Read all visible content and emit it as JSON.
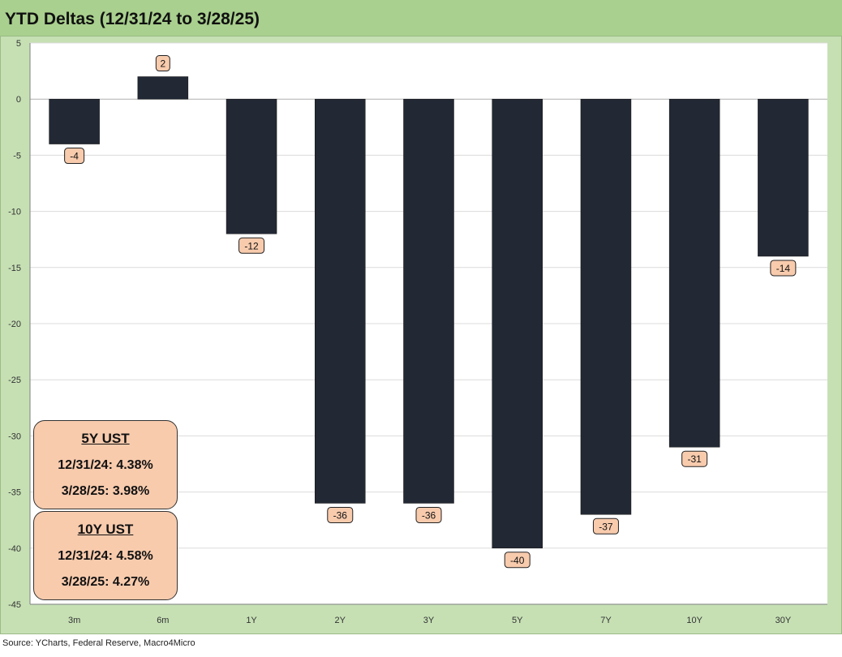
{
  "header": {
    "title": "YTD Deltas (12/31/24 to 3/28/25)"
  },
  "chart_data": {
    "type": "bar",
    "title": "YTD Deltas (12/31/24 to 3/28/25)",
    "categories": [
      "3m",
      "6m",
      "1Y",
      "2Y",
      "3Y",
      "5Y",
      "7Y",
      "10Y",
      "30Y"
    ],
    "values": [
      -4,
      2,
      -12,
      -36,
      -36,
      -40,
      -37,
      -31,
      -14
    ],
    "ylim": [
      -45,
      5
    ],
    "yticks": [
      5,
      0,
      -5,
      -10,
      -15,
      -20,
      -25,
      -30,
      -35,
      -40,
      -45
    ],
    "grid": true,
    "bar_color": "#222834",
    "label_fill": "#f8cbad"
  },
  "info_boxes": [
    {
      "title": "5Y UST",
      "line1": "12/31/24: 4.38%",
      "line2": "3/28/25: 3.98%"
    },
    {
      "title": "10Y UST",
      "line1": "12/31/24: 4.58%",
      "line2": "3/28/25: 4.27%"
    }
  ],
  "footer": {
    "source": "Source: YCharts, Federal Reserve, Macro4Micro"
  }
}
